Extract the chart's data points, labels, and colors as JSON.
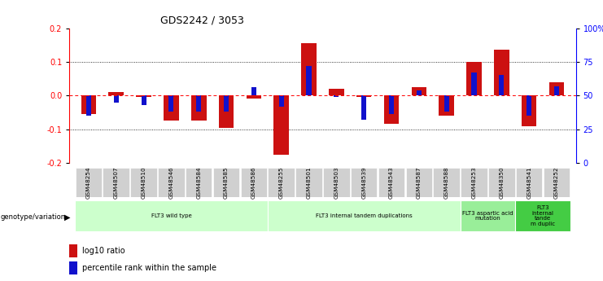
{
  "title": "GDS2242 / 3053",
  "samples": [
    "GSM48254",
    "GSM48507",
    "GSM48510",
    "GSM48546",
    "GSM48584",
    "GSM48585",
    "GSM48586",
    "GSM48255",
    "GSM48501",
    "GSM48503",
    "GSM48539",
    "GSM48543",
    "GSM48587",
    "GSM48588",
    "GSM48253",
    "GSM48350",
    "GSM48541",
    "GSM48252"
  ],
  "log10_ratio": [
    -0.055,
    0.01,
    -0.005,
    -0.075,
    -0.075,
    -0.095,
    -0.01,
    -0.175,
    0.155,
    0.02,
    -0.005,
    -0.085,
    0.025,
    -0.06,
    0.1,
    0.135,
    -0.09,
    0.04
  ],
  "percentile_rank": [
    35,
    45,
    43,
    38,
    38,
    38,
    56,
    42,
    72,
    49,
    32,
    36,
    54,
    38,
    67,
    65,
    35,
    57
  ],
  "group_labels": [
    "FLT3 wild type",
    "FLT3 internal tandem duplications",
    "FLT3 aspartic acid\nmutation",
    "FLT3\ninternal\ntande\nm duplic"
  ],
  "group_ranges": [
    [
      0,
      6
    ],
    [
      7,
      13
    ],
    [
      14,
      15
    ],
    [
      16,
      17
    ]
  ],
  "group_colors": [
    "#ccffcc",
    "#ccffcc",
    "#99ee99",
    "#44cc44"
  ],
  "ylim": [
    -0.2,
    0.2
  ],
  "yticks_left": [
    -0.2,
    -0.1,
    0.0,
    0.1,
    0.2
  ],
  "yticks_right": [
    0,
    25,
    50,
    75,
    100
  ],
  "bar_color_red": "#cc1111",
  "bar_color_blue": "#1111cc",
  "bg_color": "#ffffff",
  "legend_red": "log10 ratio",
  "legend_blue": "percentile rank within the sample"
}
